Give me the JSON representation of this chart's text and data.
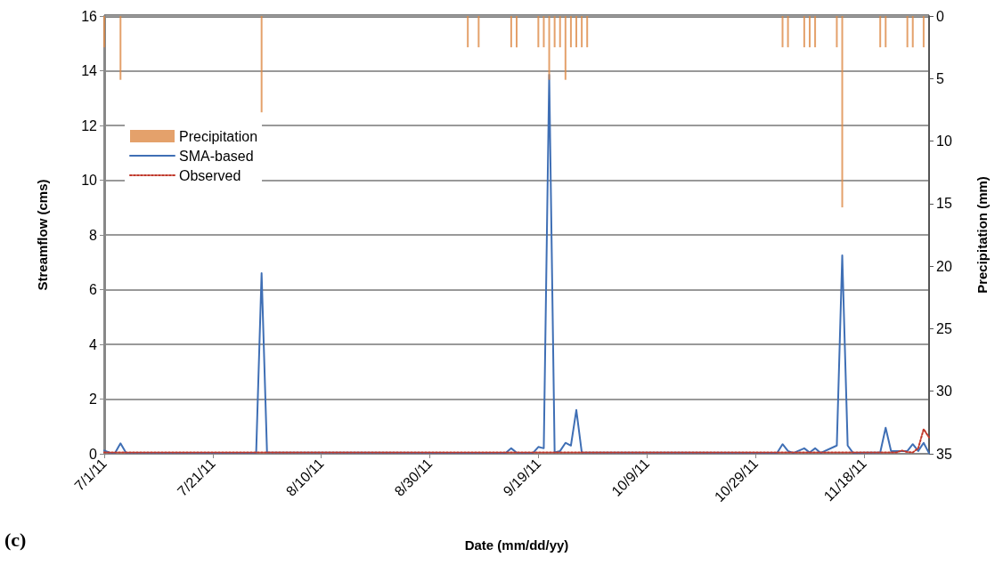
{
  "chart_data": {
    "type": "line",
    "xlabel": "Date (mm/dd/yy)",
    "ylabel": "Streamflow (cms)",
    "y2label": "Precipitation (mm)",
    "annotations": [
      "(c)"
    ],
    "xlim": [
      "2011-07-01",
      "2011-11-30"
    ],
    "xticks": [
      {
        "value": "2011-07-01",
        "label": "7/1/11"
      },
      {
        "value": "2011-07-21",
        "label": "7/21/11"
      },
      {
        "value": "2011-08-10",
        "label": "8/10/11"
      },
      {
        "value": "2011-08-30",
        "label": "8/30/11"
      },
      {
        "value": "2011-09-19",
        "label": "9/19/11"
      },
      {
        "value": "2011-10-09",
        "label": "10/9/11"
      },
      {
        "value": "2011-10-29",
        "label": "10/29/11"
      },
      {
        "value": "2011-11-18",
        "label": "11/18/11"
      }
    ],
    "ylim": [
      0,
      16
    ],
    "yticks": [
      0,
      2,
      4,
      6,
      8,
      10,
      12,
      14,
      16
    ],
    "y2lim": [
      35,
      0
    ],
    "y2ticks": [
      0,
      5,
      10,
      15,
      20,
      25,
      30,
      35
    ],
    "grid": "y",
    "legend": "top left",
    "marker": "none",
    "series": [
      {
        "name": "Precipitation",
        "type": "bar",
        "axis": "y2",
        "color": "#dd8a46",
        "x": [
          "2011-07-01",
          "2011-07-04",
          "2011-07-30",
          "2011-09-06",
          "2011-09-08",
          "2011-09-14",
          "2011-09-15",
          "2011-09-19",
          "2011-09-20",
          "2011-09-21",
          "2011-09-22",
          "2011-09-23",
          "2011-09-24",
          "2011-09-25",
          "2011-09-26",
          "2011-09-27",
          "2011-09-28",
          "2011-11-03",
          "2011-11-04",
          "2011-11-07",
          "2011-11-08",
          "2011-11-09",
          "2011-11-13",
          "2011-11-14",
          "2011-11-21",
          "2011-11-22",
          "2011-11-26",
          "2011-11-27",
          "2011-11-29"
        ],
        "values": [
          2.5,
          5.1,
          7.7,
          2.5,
          2.5,
          2.5,
          2.5,
          2.5,
          2.5,
          5.1,
          2.5,
          2.5,
          5.1,
          2.5,
          2.5,
          2.5,
          2.5,
          2.5,
          2.5,
          2.5,
          2.5,
          2.5,
          2.5,
          15.3,
          2.5,
          2.5,
          2.5,
          2.5,
          2.5
        ]
      },
      {
        "name": "SMA-based",
        "line_style": "solid",
        "color": "#3f6fb5",
        "x": [
          "2011-07-01",
          "2011-07-02",
          "2011-07-03",
          "2011-07-04",
          "2011-07-05",
          "2011-07-29",
          "2011-07-30",
          "2011-07-31",
          "2011-09-13",
          "2011-09-14",
          "2011-09-15",
          "2011-09-18",
          "2011-09-19",
          "2011-09-20",
          "2011-09-21",
          "2011-09-22",
          "2011-09-23",
          "2011-09-24",
          "2011-09-25",
          "2011-09-26",
          "2011-09-27",
          "2011-11-02",
          "2011-11-03",
          "2011-11-04",
          "2011-11-05",
          "2011-11-07",
          "2011-11-08",
          "2011-11-09",
          "2011-11-10",
          "2011-11-13",
          "2011-11-14",
          "2011-11-15",
          "2011-11-16",
          "2011-11-21",
          "2011-11-22",
          "2011-11-23",
          "2011-11-26",
          "2011-11-27",
          "2011-11-28",
          "2011-11-29",
          "2011-11-30"
        ],
        "values": [
          0.12,
          0.04,
          0.03,
          0.38,
          0.04,
          0.03,
          6.6,
          0.05,
          0.03,
          0.2,
          0.04,
          0.03,
          0.25,
          0.2,
          13.85,
          0.05,
          0.1,
          0.4,
          0.3,
          1.6,
          0.05,
          0.03,
          0.35,
          0.1,
          0.03,
          0.2,
          0.05,
          0.2,
          0.03,
          0.3,
          7.25,
          0.3,
          0.03,
          0.05,
          0.95,
          0.1,
          0.1,
          0.35,
          0.1,
          0.4,
          0.02
        ]
      },
      {
        "name": "Observed",
        "line_style": "dotted",
        "color": "#c0392b",
        "x": [
          "2011-07-01",
          "2011-11-24",
          "2011-11-25",
          "2011-11-26",
          "2011-11-27",
          "2011-11-28",
          "2011-11-29",
          "2011-11-30"
        ],
        "values": [
          0.05,
          0.05,
          0.12,
          0.06,
          0.05,
          0.2,
          0.9,
          0.6
        ]
      }
    ]
  }
}
